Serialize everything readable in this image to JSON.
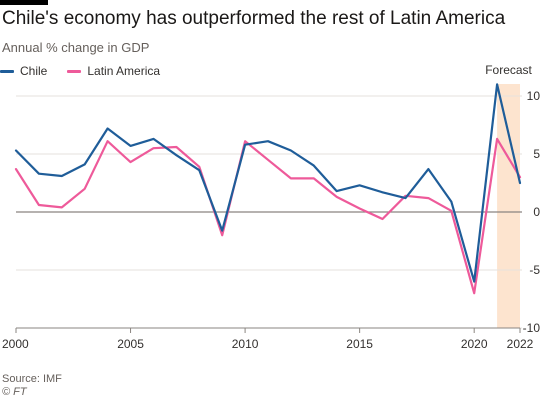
{
  "title": "Chile's economy has outperformed the rest of Latin America",
  "subtitle": "Annual % change in GDP",
  "source": "Source: IMF",
  "credit": "© FT",
  "colors": {
    "chile": "#1f5d99",
    "latam": "#ee5a9a",
    "forecast": "#fde4cf"
  },
  "chart_data": {
    "type": "line",
    "x": [
      2000,
      2001,
      2002,
      2003,
      2004,
      2005,
      2006,
      2007,
      2008,
      2009,
      2010,
      2011,
      2012,
      2013,
      2014,
      2015,
      2016,
      2017,
      2018,
      2019,
      2020,
      2021,
      2022
    ],
    "series": [
      {
        "name": "Chile",
        "values": [
          5.3,
          3.3,
          3.1,
          4.1,
          7.2,
          5.7,
          6.3,
          4.9,
          3.6,
          -1.6,
          5.8,
          6.1,
          5.3,
          4.0,
          1.8,
          2.3,
          1.7,
          1.2,
          3.7,
          0.9,
          -6.0,
          11.0,
          2.5
        ]
      },
      {
        "name": "Latin America",
        "values": [
          3.7,
          0.6,
          0.4,
          2.0,
          6.1,
          4.3,
          5.5,
          5.6,
          3.9,
          -2.0,
          6.1,
          4.5,
          2.9,
          2.9,
          1.3,
          0.3,
          -0.6,
          1.4,
          1.2,
          0.1,
          -7.0,
          6.3,
          3.0
        ]
      }
    ],
    "xlabel": "",
    "ylabel": "",
    "ylim": [
      -10,
      10
    ],
    "xlim": [
      2000,
      2022
    ],
    "yticks": [
      "-10",
      "-5",
      "0",
      "5",
      "10"
    ],
    "xticks": [
      "2000",
      "2005",
      "2010",
      "2015",
      "2020",
      "2022"
    ],
    "forecast_start": 2021,
    "forecast_label": "Forecast",
    "grid": true,
    "legend_position": "top-left"
  }
}
